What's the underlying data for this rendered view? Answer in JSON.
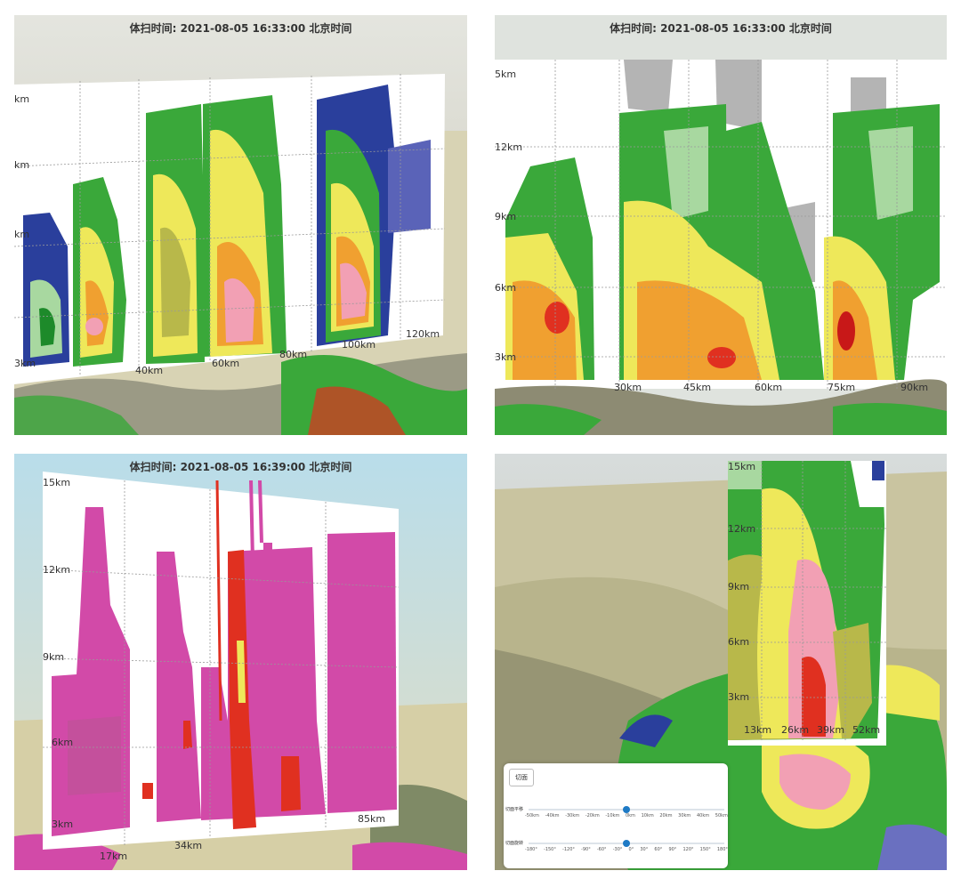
{
  "panel_tl": {
    "title": "体扫时间: 2021-08-05 16:33:00 北京时间",
    "y_labels": [
      "km",
      "km",
      "km"
    ],
    "x_labels": [
      "3km",
      "40km",
      "60km",
      "80km",
      "100km",
      "120km"
    ]
  },
  "panel_tr": {
    "title": "体扫时间: 2021-08-05 16:33:00 北京时间",
    "y_labels": [
      "5km",
      "12km",
      "9km",
      "6km",
      "3km"
    ],
    "x_labels": [
      "30km",
      "45km",
      "60km",
      "75km",
      "90km"
    ]
  },
  "panel_bl": {
    "title": "体扫时间: 2021-08-05 16:39:00 北京时间",
    "y_labels": [
      "15km",
      "12km",
      "9km",
      "6km",
      "3km"
    ],
    "x_labels": [
      "17km",
      "34km",
      "85km"
    ]
  },
  "panel_br": {
    "y_labels": [
      "15km",
      "12km",
      "9km",
      "6km",
      "3km"
    ],
    "x_labels": [
      "13km",
      "26km",
      "39km",
      "52km"
    ],
    "control": {
      "button_label": "切面",
      "slider1_label": "切面平移",
      "slider1_ticks": [
        "-50km",
        "-40km",
        "-30km",
        "-20km",
        "-10km",
        "0km",
        "10km",
        "20km",
        "30km",
        "40km",
        "50km"
      ],
      "slider1_value": 0.5,
      "slider2_label": "切面旋转",
      "slider2_ticks": [
        "-180°",
        "-150°",
        "-120°",
        "-90°",
        "-60°",
        "-30°",
        "0°",
        "30°",
        "60°",
        "90°",
        "120°",
        "150°",
        "180°"
      ],
      "slider2_value": 0.5
    }
  },
  "colors": {
    "blue": "#2a3f9c",
    "lightgreen": "#a8d8a0",
    "green": "#3aa83a",
    "darkgreen": "#1d8a2a",
    "yellow": "#eee85a",
    "olive": "#b8b84a",
    "orange": "#f0a030",
    "red": "#e03020",
    "pink": "#f2a0b4",
    "magenta": "#d24aa8",
    "gray": "#b4b4b4"
  }
}
